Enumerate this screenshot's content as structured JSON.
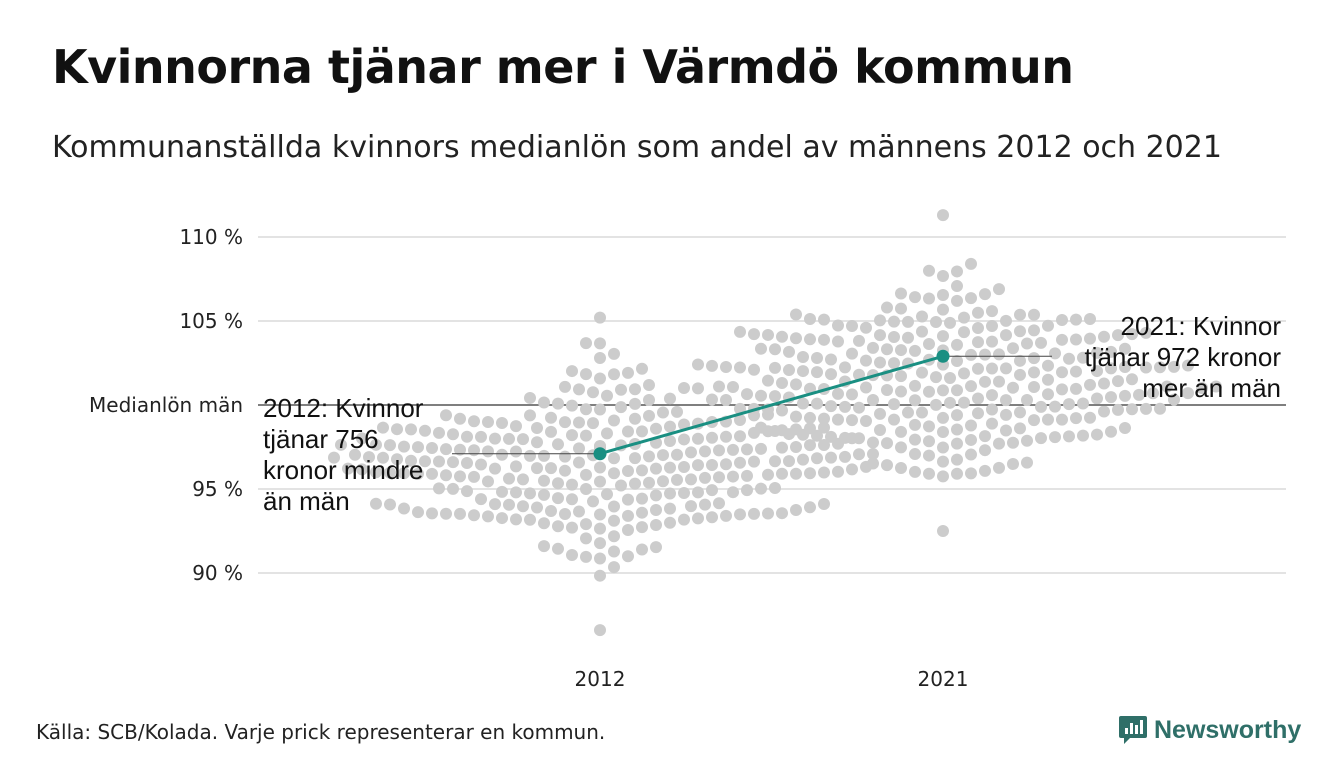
{
  "title": "Kvinnorna tjänar mer i Värmdö kommun",
  "subtitle": "Kommunanställda kvinnors medianlön som andel av männens 2012 och 2021",
  "source": "Källa: SCB/Kolada. Varje prick representerar en kommun.",
  "brand": "Newsworthy",
  "colors": {
    "highlight": "#1a8f82",
    "dots": "#cccccc",
    "grid": "#e3e3e3",
    "brand": "#2f6f68"
  },
  "chart_data": {
    "type": "scatter",
    "title": "Kvinnorna tjänar mer i Värmdö kommun",
    "subtitle": "Kommunanställda kvinnors medianlön som andel av männens 2012 och 2021",
    "categories": [
      "2012",
      "2021"
    ],
    "y_ticks": [
      {
        "value": 110,
        "label": "110 %"
      },
      {
        "value": 105,
        "label": "105 %"
      },
      {
        "value": 95,
        "label": "95 %"
      },
      {
        "value": 90,
        "label": "90 %"
      }
    ],
    "reference_line": {
      "value": 100,
      "label": "Medianlön män"
    },
    "ylim": [
      86,
      112
    ],
    "grid": true,
    "distribution": {
      "2012": {
        "count": 290,
        "min": 86.6,
        "max": 105.2,
        "center": 96.5,
        "spread": 2.6
      },
      "2021": {
        "count": 290,
        "min": 92.5,
        "max": 111.3,
        "center": 101.2,
        "spread": 2.8
      }
    },
    "highlight": {
      "name": "Värmdö",
      "values": [
        {
          "x": "2012",
          "y": 97.1,
          "annotation": [
            "2012: Kvinnor",
            "tjänar 756",
            "kronor mindre",
            "än män"
          ]
        },
        {
          "x": "2021",
          "y": 102.9,
          "annotation": [
            "2021: Kvinnor",
            "tjänar 972 kronor",
            "mer än män"
          ]
        }
      ]
    }
  }
}
